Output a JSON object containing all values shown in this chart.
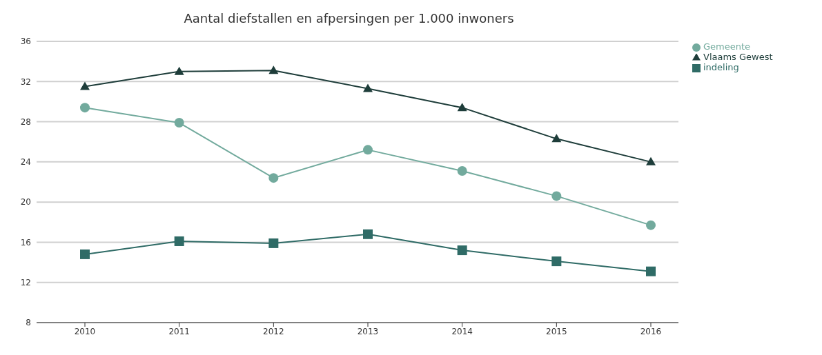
{
  "chart_data": {
    "type": "line",
    "title": "Aantal diefstallen en afpersingen per 1.000 inwoners",
    "categories": [
      "2010",
      "2011",
      "2012",
      "2013",
      "2014",
      "2015",
      "2016"
    ],
    "series": [
      {
        "name": "Gemeente",
        "color": "#72aa9d",
        "marker": "circle",
        "values": [
          29.4,
          27.9,
          22.4,
          25.2,
          23.1,
          20.6,
          17.7
        ]
      },
      {
        "name": "indeling",
        "color": "#2f6b66",
        "marker": "square",
        "values": [
          14.8,
          16.1,
          15.9,
          16.8,
          15.2,
          14.1,
          13.1
        ]
      },
      {
        "name": "Vlaams Gewest",
        "color": "#1e3d3a",
        "marker": "triangle",
        "values": [
          31.5,
          33.0,
          33.1,
          31.3,
          29.4,
          26.3,
          24.0
        ]
      }
    ],
    "ylim": [
      8,
      36
    ],
    "yticks": [
      8,
      12,
      16,
      20,
      24,
      28,
      32,
      36
    ],
    "grid": "y",
    "legend": "top right"
  }
}
